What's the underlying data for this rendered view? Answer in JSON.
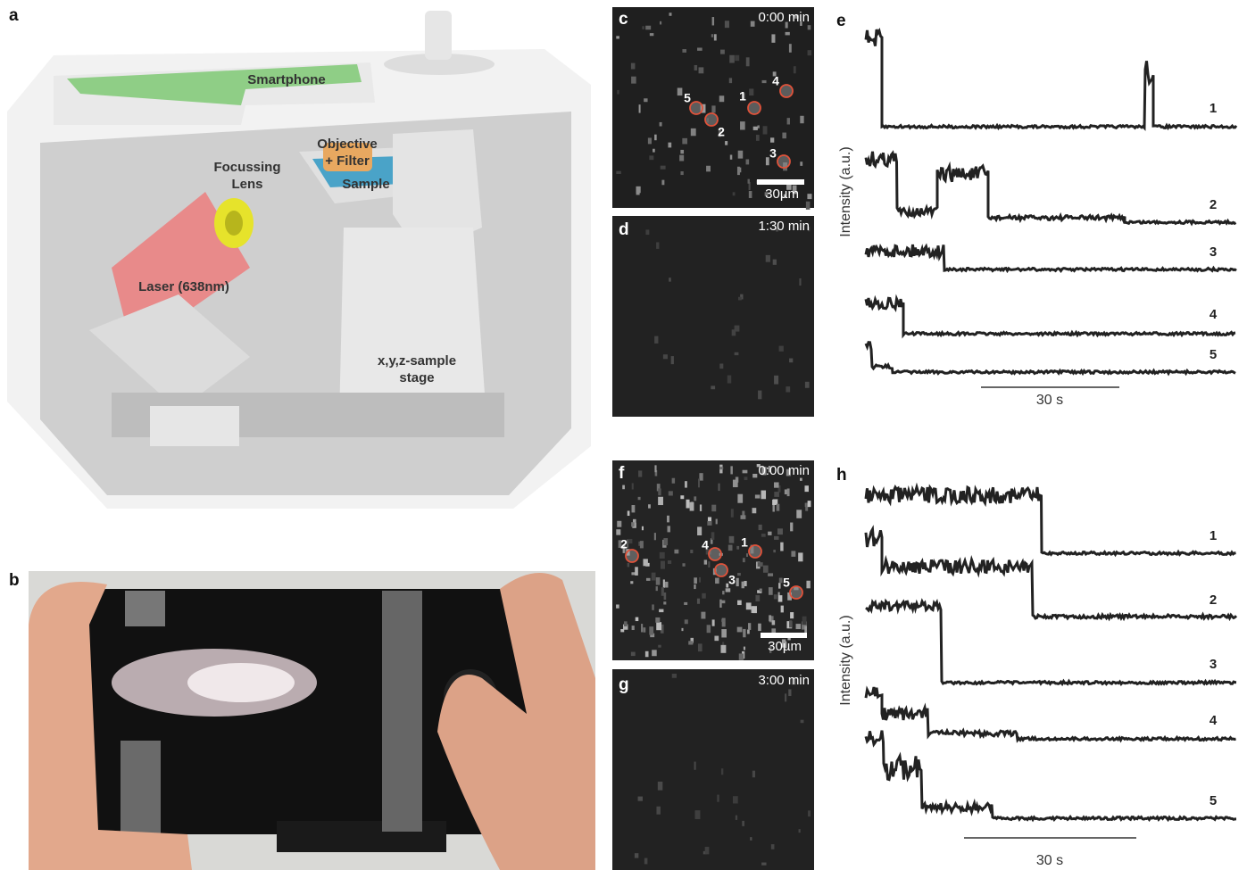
{
  "panel_a": {
    "letter": "a",
    "smartphone": "Smartphone",
    "objective": [
      "Objective",
      "+ Filter"
    ],
    "sample": "Sample",
    "lens": [
      "Focussing",
      "Lens"
    ],
    "laser": "Laser (638nm)",
    "stage": [
      "x,y,z-sample",
      "stage"
    ]
  },
  "panel_b": {
    "letter": "b"
  },
  "panel_c": {
    "letter": "c",
    "time": "0:00 min",
    "scale": "30µm",
    "spots": [
      "1",
      "2",
      "3",
      "4",
      "5"
    ]
  },
  "panel_d": {
    "letter": "d",
    "time": "1:30 min"
  },
  "panel_e": {
    "letter": "e",
    "y_label": "Intensity (a.u.)",
    "trace_labels": [
      "1",
      "2",
      "3",
      "4",
      "5"
    ],
    "scale": "30 s"
  },
  "panel_f": {
    "letter": "f",
    "time": "0:00 min",
    "scale": "30µm",
    "spots": [
      "1",
      "2",
      "3",
      "4",
      "5"
    ]
  },
  "panel_g": {
    "letter": "g",
    "time": "3:00 min"
  },
  "panel_h": {
    "letter": "h",
    "y_label": "Intensity (a.u.)",
    "trace_labels": [
      "1",
      "2",
      "3",
      "4",
      "5"
    ],
    "scale": "30 s"
  }
}
